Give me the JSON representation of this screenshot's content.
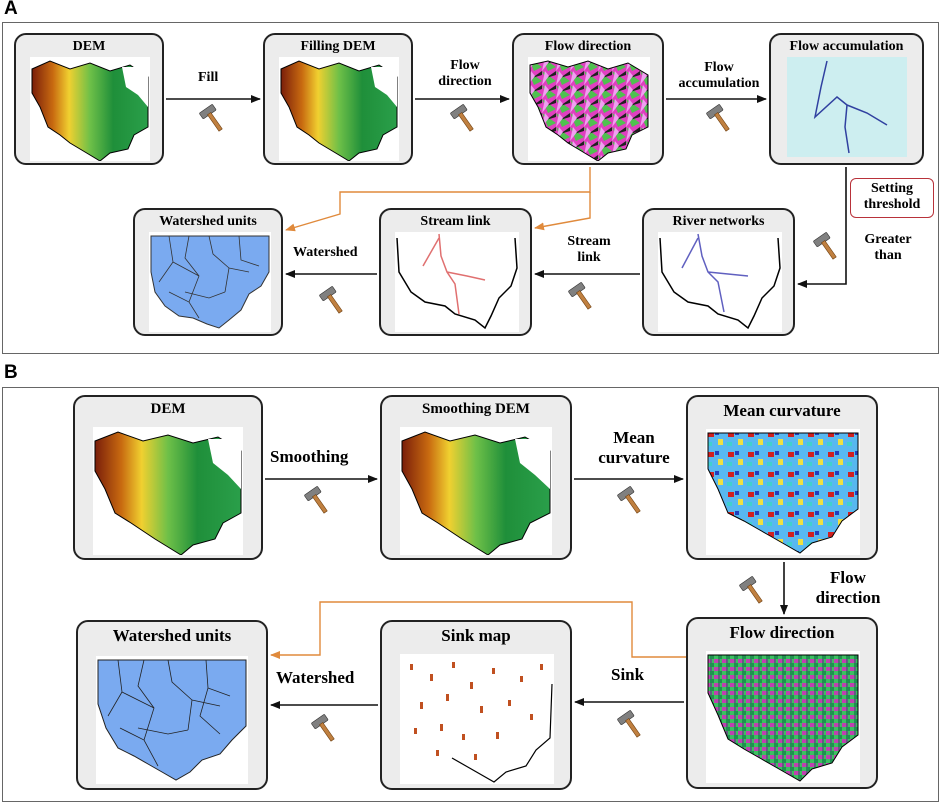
{
  "panel_a": {
    "label": "A",
    "boxes": {
      "dem": "DEM",
      "filling_dem": "Filling DEM",
      "flow_direction": "Flow direction",
      "flow_accumulation": "Flow accumulation",
      "river_networks": "River networks",
      "stream_link": "Stream link",
      "watershed_units": "Watershed units"
    },
    "arrows": {
      "fill": "Fill",
      "flow_direction_1": "Flow",
      "flow_direction_2": "direction",
      "flow_accumulation_1": "Flow",
      "flow_accumulation_2": "accumulation",
      "threshold_1": "Setting",
      "threshold_2": "threshold",
      "greater_1": "Greater",
      "greater_2": "than",
      "stream_link_1": "Stream",
      "stream_link_2": "link",
      "watershed": "Watershed"
    }
  },
  "panel_b": {
    "label": "B",
    "boxes": {
      "dem": "DEM",
      "smoothing_dem": "Smoothing DEM",
      "mean_curvature": "Mean curvature",
      "flow_direction": "Flow direction",
      "sink_map": "Sink map",
      "watershed_units": "Watershed units"
    },
    "arrows": {
      "smoothing": "Smoothing",
      "mean_curvature_1": "Mean",
      "mean_curvature_2": "curvature",
      "flow_direction_1": "Flow",
      "flow_direction_2": "direction",
      "sink": "Sink",
      "watershed": "Watershed"
    }
  },
  "colors": {
    "arrow": "#111111",
    "orange_link": "#e08a3c",
    "box_fill": "#ececec",
    "threshold_border": "#b8323a",
    "watershed_fill": "#7aaaf0",
    "stream_red": "#e07070",
    "river_blue": "#5050c0"
  },
  "icons": {
    "tool": "hammer-icon"
  }
}
